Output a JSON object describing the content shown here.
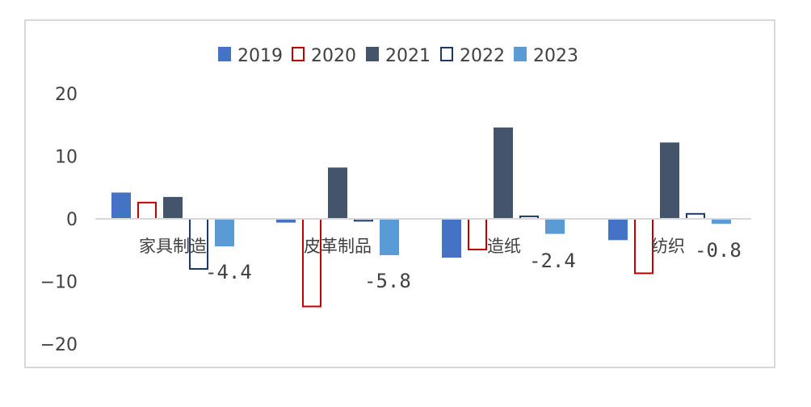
{
  "chart_data": {
    "type": "bar",
    "categories": [
      "家具制造",
      "皮革制品",
      "造纸",
      "纺织"
    ],
    "series": [
      {
        "name": "2019",
        "color": "#4472c4",
        "fill": true,
        "values": [
          4.2,
          -0.6,
          -6.2,
          -3.4
        ]
      },
      {
        "name": "2020",
        "color": "#c00000",
        "fill": false,
        "values": [
          2.6,
          -14.0,
          -4.9,
          -8.7
        ]
      },
      {
        "name": "2021",
        "color": "#44546a",
        "fill": true,
        "values": [
          3.5,
          8.2,
          14.6,
          12.2
        ]
      },
      {
        "name": "2022",
        "color": "#1f3864",
        "fill": false,
        "values": [
          -8.0,
          -0.3,
          0.4,
          0.8
        ]
      },
      {
        "name": "2023",
        "color": "#5b9bd5",
        "fill": true,
        "values": [
          -4.4,
          -5.8,
          -2.4,
          -0.8
        ]
      }
    ],
    "data_labels": [
      "-4.4",
      "-5.8",
      "-2.4",
      "-0.8"
    ],
    "ylim": [
      -20,
      20
    ],
    "yticks": [
      20,
      10,
      0,
      -10,
      -20
    ],
    "ytick_labels": [
      "20",
      "10",
      "0",
      "−10",
      "−20"
    ],
    "legend_position": "top",
    "grid": false,
    "title": "",
    "xlabel": "",
    "ylabel": ""
  }
}
